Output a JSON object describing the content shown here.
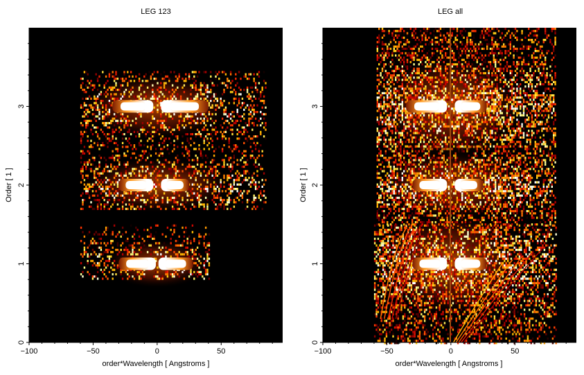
{
  "chart_data": [
    {
      "type": "heatmap",
      "title": "LEG 123",
      "xlabel": "order*Wavelength [ Angstroms ]",
      "ylabel": "Order [ 1 ]",
      "xlim": [
        -100,
        98
      ],
      "ylim": [
        0,
        4
      ],
      "xticks": [
        -100,
        -50,
        0,
        50
      ],
      "yticks": [
        0,
        1,
        2,
        3
      ],
      "colormap": "black-red-orange-white (hot)",
      "background": "#000000",
      "bands": [
        {
          "order": 1,
          "y_range": [
            0.8,
            1.5
          ],
          "x_range": [
            -60,
            40
          ],
          "bright_core_x": [
            [
              -30,
              -1
            ],
            [
              1,
              28
            ]
          ]
        },
        {
          "order": 2,
          "y_range": [
            1.7,
            2.5
          ],
          "x_range": [
            -60,
            85
          ],
          "bright_core_x": [
            [
              -30,
              -3
            ],
            [
              3,
              25
            ]
          ]
        },
        {
          "order": 3,
          "y_range": [
            2.5,
            3.45
          ],
          "x_range": [
            -60,
            85
          ],
          "bright_core_x": [
            [
              -35,
              -3
            ],
            [
              3,
              40
            ]
          ]
        }
      ]
    },
    {
      "type": "heatmap",
      "title": "LEG all",
      "xlabel": "order*Wavelength [ Angstroms ]",
      "ylabel": "Order [ 1 ]",
      "xlim": [
        -100,
        98
      ],
      "ylim": [
        0,
        4
      ],
      "xticks": [
        -100,
        -50,
        0,
        50
      ],
      "yticks": [
        0,
        1,
        2,
        3
      ],
      "colormap": "black-red-orange-white (hot)",
      "background": "#000000",
      "bands": [
        {
          "order": 1,
          "y_range": [
            0,
            1.5
          ],
          "x_range": [
            -60,
            82
          ],
          "bright_core_x": [
            [
              -30,
              -3
            ],
            [
              3,
              28
            ]
          ]
        },
        {
          "order": 2,
          "y_range": [
            1.5,
            2.5
          ],
          "x_range": [
            -58,
            82
          ],
          "bright_core_x": [
            [
              -30,
              -3
            ],
            [
              3,
              25
            ]
          ]
        },
        {
          "order": 3,
          "y_range": [
            2.5,
            4
          ],
          "x_range": [
            -58,
            82
          ],
          "bright_core_x": [
            [
              -35,
              -3
            ],
            [
              3,
              28
            ]
          ]
        }
      ]
    }
  ]
}
